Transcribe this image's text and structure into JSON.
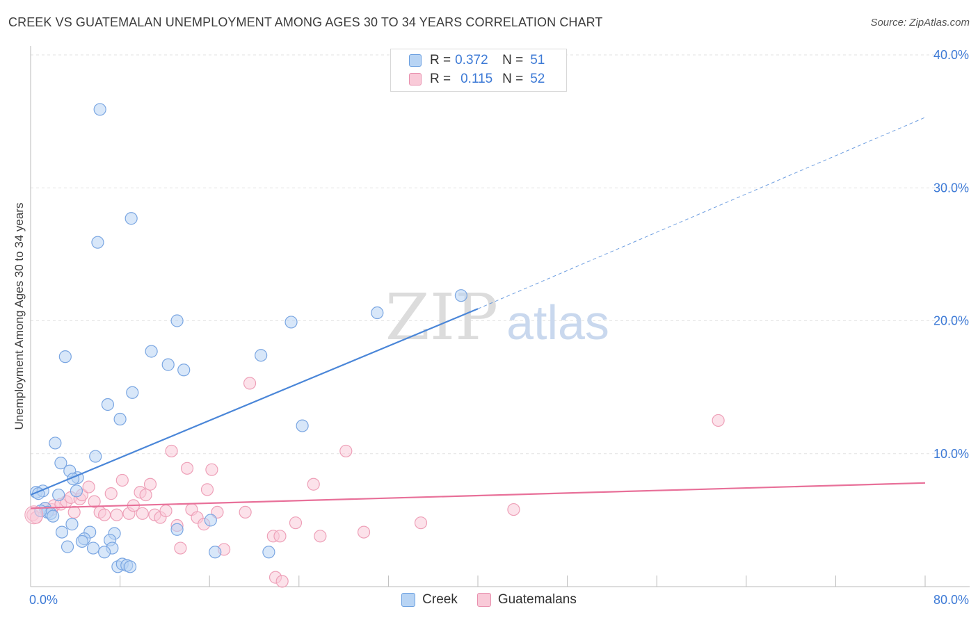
{
  "title": "CREEK VS GUATEMALAN UNEMPLOYMENT AMONG AGES 30 TO 34 YEARS CORRELATION CHART",
  "source": "Source: ZipAtlas.com",
  "watermark": {
    "zip": "ZIP",
    "atlas": "atlas"
  },
  "legend": {
    "rows": [
      {
        "r_label": "R =",
        "r_value": "0.372",
        "n_label": "N =",
        "n_value": "51",
        "color": "#a8c8f0",
        "border": "#6a9fe0"
      },
      {
        "r_label": "R =",
        "r_value": "0.115",
        "n_label": "N =",
        "n_value": "52",
        "color": "#f8c0d0",
        "border": "#e890ae"
      }
    ]
  },
  "bottom_legend": {
    "series1": "Creek",
    "series2": "Guatemalans"
  },
  "chart_data": {
    "type": "scatter",
    "xlabel": "",
    "ylabel": "Unemployment Among Ages 30 to 34 years",
    "xlim": [
      0,
      80
    ],
    "ylim": [
      0,
      40
    ],
    "y_tick_labels": [
      "10.0%",
      "20.0%",
      "30.0%",
      "40.0%"
    ],
    "y_ticks": [
      10,
      20,
      30,
      40
    ],
    "x_tick_labels": [
      "0.0%",
      "80.0%"
    ],
    "x_ticks_minor": [
      0,
      8,
      16,
      24,
      32,
      40,
      48,
      56,
      64,
      72,
      80
    ],
    "grid": true,
    "series": [
      {
        "name": "Creek",
        "color": "#4a86d8",
        "fill": "#b8d4f4",
        "stroke": "#7aa6e2",
        "points": [
          [
            6.2,
            35.9
          ],
          [
            9.0,
            27.7
          ],
          [
            6.0,
            25.9
          ],
          [
            13.1,
            20.0
          ],
          [
            23.3,
            19.9
          ],
          [
            31.0,
            20.6
          ],
          [
            38.5,
            21.9
          ],
          [
            10.8,
            17.7
          ],
          [
            3.1,
            17.3
          ],
          [
            12.3,
            16.7
          ],
          [
            13.7,
            16.3
          ],
          [
            20.6,
            17.4
          ],
          [
            9.1,
            14.6
          ],
          [
            6.9,
            13.7
          ],
          [
            8.0,
            12.6
          ],
          [
            24.3,
            12.1
          ],
          [
            2.2,
            10.8
          ],
          [
            5.8,
            9.8
          ],
          [
            2.7,
            9.3
          ],
          [
            3.5,
            8.7
          ],
          [
            4.2,
            8.2
          ],
          [
            3.8,
            8.1
          ],
          [
            0.5,
            7.1
          ],
          [
            1.1,
            7.2
          ],
          [
            0.7,
            7.0
          ],
          [
            2.5,
            6.9
          ],
          [
            4.1,
            7.2
          ],
          [
            1.3,
            5.9
          ],
          [
            1.5,
            5.6
          ],
          [
            1.8,
            5.5
          ],
          [
            2.0,
            5.3
          ],
          [
            3.7,
            4.7
          ],
          [
            2.8,
            4.1
          ],
          [
            5.3,
            4.1
          ],
          [
            7.5,
            4.0
          ],
          [
            4.8,
            3.6
          ],
          [
            4.6,
            3.4
          ],
          [
            7.1,
            3.5
          ],
          [
            3.3,
            3.0
          ],
          [
            5.6,
            2.9
          ],
          [
            7.3,
            2.9
          ],
          [
            6.6,
            2.6
          ],
          [
            13.1,
            4.3
          ],
          [
            16.1,
            5.0
          ],
          [
            16.5,
            2.6
          ],
          [
            21.3,
            2.6
          ],
          [
            7.8,
            1.5
          ],
          [
            8.2,
            1.7
          ],
          [
            8.6,
            1.6
          ],
          [
            8.9,
            1.5
          ],
          [
            0.9,
            5.7
          ]
        ],
        "trend": {
          "x": [
            0,
            40
          ],
          "y": [
            6.9,
            20.9
          ],
          "dashed_x": [
            40,
            80
          ],
          "dashed_y": [
            20.9,
            35.3
          ]
        }
      },
      {
        "name": "Guatemalans",
        "color": "#e87099",
        "fill": "#f9cad8",
        "stroke": "#eea0b8",
        "points": [
          [
            0.2,
            5.4
          ],
          [
            0.5,
            5.2
          ],
          [
            1.3,
            5.9
          ],
          [
            1.9,
            5.8
          ],
          [
            2.1,
            6.1
          ],
          [
            2.7,
            6.2
          ],
          [
            3.2,
            6.4
          ],
          [
            3.6,
            6.7
          ],
          [
            3.9,
            5.6
          ],
          [
            4.4,
            6.6
          ],
          [
            4.6,
            6.9
          ],
          [
            5.2,
            7.5
          ],
          [
            5.7,
            6.4
          ],
          [
            6.2,
            5.6
          ],
          [
            6.6,
            5.4
          ],
          [
            7.2,
            7.0
          ],
          [
            7.7,
            5.4
          ],
          [
            8.2,
            8.0
          ],
          [
            8.8,
            5.5
          ],
          [
            9.2,
            6.1
          ],
          [
            9.8,
            7.1
          ],
          [
            10.3,
            6.9
          ],
          [
            10.7,
            7.7
          ],
          [
            11.1,
            5.4
          ],
          [
            11.6,
            5.2
          ],
          [
            12.1,
            5.7
          ],
          [
            12.6,
            10.2
          ],
          [
            13.1,
            4.6
          ],
          [
            13.4,
            2.9
          ],
          [
            14.0,
            8.9
          ],
          [
            14.4,
            5.8
          ],
          [
            14.9,
            5.2
          ],
          [
            15.5,
            4.7
          ],
          [
            15.8,
            7.3
          ],
          [
            16.2,
            8.8
          ],
          [
            16.7,
            5.6
          ],
          [
            17.3,
            2.8
          ],
          [
            19.2,
            5.6
          ],
          [
            19.6,
            15.3
          ],
          [
            21.7,
            3.8
          ],
          [
            22.3,
            3.8
          ],
          [
            23.7,
            4.8
          ],
          [
            21.9,
            0.7
          ],
          [
            22.5,
            0.4
          ],
          [
            25.3,
            7.7
          ],
          [
            25.9,
            3.8
          ],
          [
            28.2,
            10.2
          ],
          [
            29.8,
            4.1
          ],
          [
            34.9,
            4.8
          ],
          [
            43.2,
            5.8
          ],
          [
            61.5,
            12.5
          ],
          [
            10.0,
            5.5
          ]
        ],
        "trend": {
          "x": [
            0,
            80
          ],
          "y": [
            5.9,
            7.8
          ]
        }
      }
    ]
  }
}
